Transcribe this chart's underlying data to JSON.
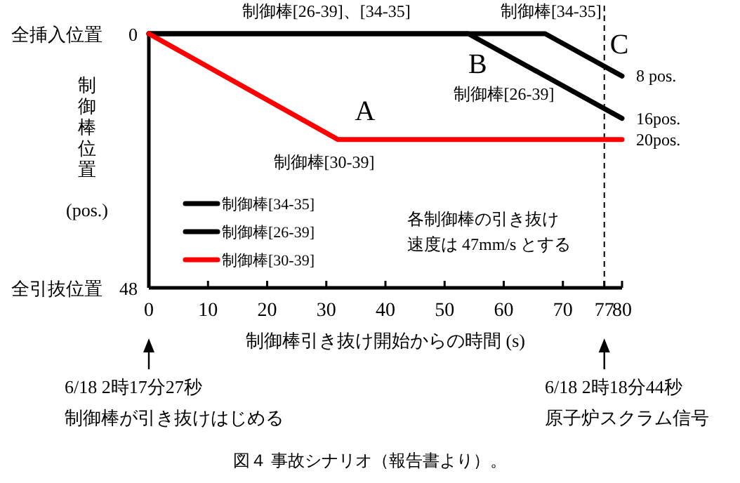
{
  "chart_data": {
    "type": "line",
    "xlabel": "制御棒引き抜け開始からの時間 (s)",
    "ylabel": "制御棒位置 (pos.)",
    "xlim": [
      0,
      80
    ],
    "xticks": [
      0,
      10,
      20,
      30,
      40,
      50,
      60,
      70,
      77,
      80
    ],
    "ylim": [
      48,
      0
    ],
    "yticks": [
      0,
      48
    ],
    "grid": false,
    "legend": "bottom left",
    "line_style": "solid",
    "marker": "none",
    "series": [
      {
        "name": "制御棒[34-35]",
        "color": "#000000",
        "x": [
          0,
          67,
          80
        ],
        "values": [
          0,
          0,
          8
        ]
      },
      {
        "name": "制御棒[26-39]",
        "color": "#000000",
        "x": [
          0,
          54,
          80
        ],
        "values": [
          0,
          0,
          16
        ]
      },
      {
        "name": "制御棒[30-39]",
        "color": "#ff0000",
        "x": [
          0,
          32,
          80
        ],
        "values": [
          0,
          20,
          20
        ]
      }
    ],
    "ref_lines": [
      {
        "axis": "x",
        "value": 77,
        "label": "C",
        "line_style": "dashed",
        "color": "#000000"
      }
    ],
    "annotations": [
      "全挿入位置",
      "全引抜位置",
      {
        "text": "制御棒[26-39]、[34-35]",
        "x": 30,
        "y": 0
      },
      {
        "text": "制御棒[34-35]",
        "x": 68,
        "y": 0
      },
      {
        "text": "制御棒[26-39]",
        "x": 60,
        "y": 4
      },
      {
        "text": "制御棒[30-39]",
        "x": 32,
        "y": 20
      },
      {
        "text": "A",
        "x": 32,
        "y": 20
      },
      {
        "text": "B",
        "x": 54,
        "y": 0
      },
      {
        "text": "8 pos.",
        "x": 80,
        "y": 8
      },
      {
        "text": "16pos.",
        "x": 80,
        "y": 16
      },
      {
        "text": "20pos.",
        "x": 80,
        "y": 20
      },
      "各制御棒の引き抜け速度は 47mm/s とする",
      "6/18 2時17分27秒",
      "制御棒が引き抜けはじめる",
      "6/18 2時18分44秒",
      "原子炉スクラム信号",
      "図４ 事故シナリオ（報告書より）。"
    ]
  }
}
